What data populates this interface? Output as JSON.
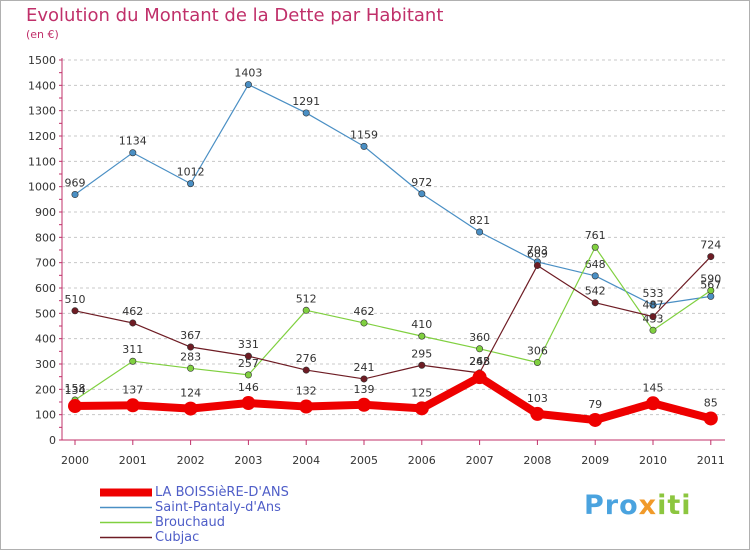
{
  "chart_data": {
    "type": "line",
    "title": "Evolution du Montant de la Dette par Habitant",
    "subtitle": "(en €)",
    "x": [
      "2000",
      "2001",
      "2002",
      "2003",
      "2004",
      "2005",
      "2006",
      "2007",
      "2008",
      "2009",
      "2010",
      "2011"
    ],
    "ylim": [
      0,
      1500
    ],
    "yticks": [
      0,
      100,
      200,
      300,
      400,
      500,
      600,
      700,
      800,
      900,
      1000,
      1100,
      1200,
      1300,
      1400,
      1500
    ],
    "grid": "horizontal dashed",
    "legend_position": "bottom-left",
    "series": [
      {
        "name": "LA BOISSièRE-D'ANS",
        "color": "#ee0000",
        "values": [
          134,
          137,
          124,
          146,
          132,
          139,
          125,
          248,
          103,
          79,
          145,
          85
        ]
      },
      {
        "name": "Saint-Pantaly-d'Ans",
        "color": "#4a8fc4",
        "values": [
          969,
          1134,
          1012,
          1403,
          1291,
          1159,
          972,
          821,
          703,
          648,
          533,
          567
        ]
      },
      {
        "name": "Brouchaud",
        "color": "#80d040",
        "values": [
          158,
          311,
          283,
          257,
          512,
          462,
          410,
          360,
          306,
          761,
          433,
          590
        ]
      },
      {
        "name": "Cubjac",
        "color": "#6e1c24",
        "values": [
          510,
          462,
          367,
          331,
          276,
          241,
          295,
          265,
          689,
          542,
          487,
          724
        ]
      }
    ]
  },
  "watermark": {
    "part1": "Pro",
    "part2": "x",
    "part3": "iti"
  }
}
